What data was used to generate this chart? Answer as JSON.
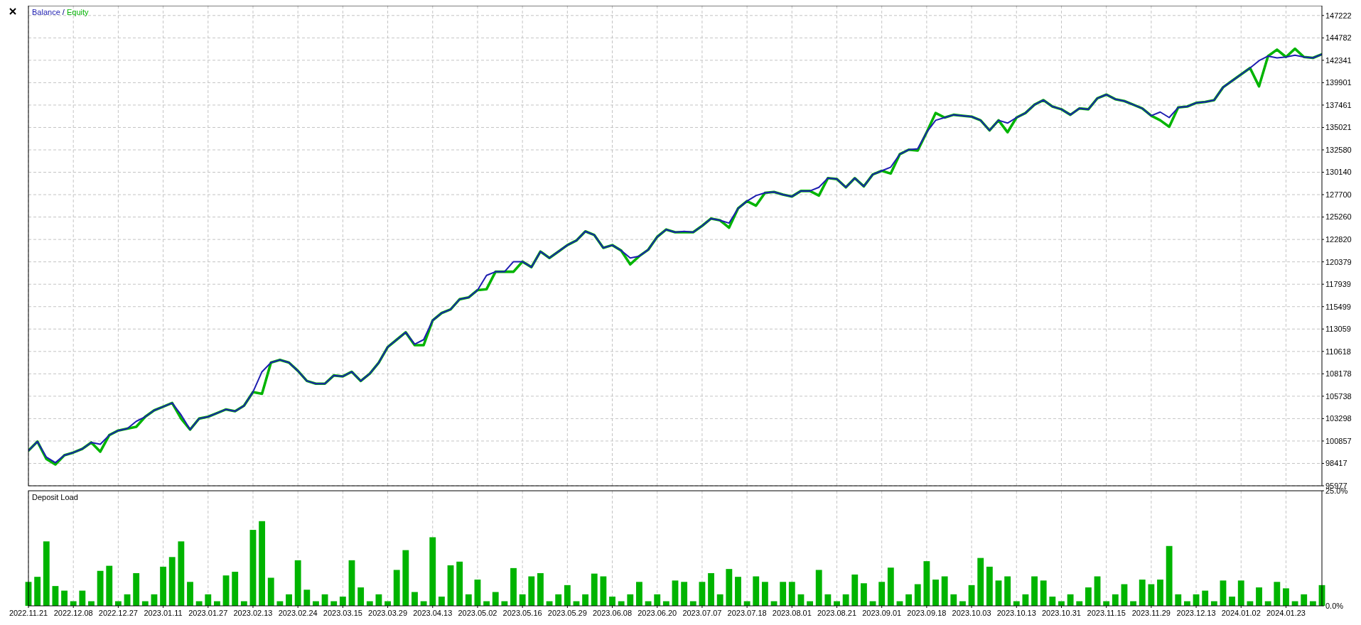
{
  "chart_data": [
    {
      "type": "line",
      "tick_labels": "y",
      "grid": true,
      "legend": "top left",
      "ylim": [
        95977,
        148290
      ],
      "annotations": [
        "/"
      ],
      "categories": [
        "2022.11.21",
        null,
        null,
        null,
        null,
        "2022.12.08",
        null,
        null,
        null,
        null,
        "2022.12.27",
        null,
        null,
        null,
        null,
        "2023.01.11",
        null,
        null,
        null,
        null,
        "2023.01.27",
        null,
        null,
        null,
        null,
        "2023.02.13",
        null,
        null,
        null,
        null,
        "2023.02.24",
        null,
        null,
        null,
        null,
        "2023.03.15",
        null,
        null,
        null,
        null,
        "2023.03.29",
        null,
        null,
        null,
        null,
        "2023.04.13",
        null,
        null,
        null,
        null,
        "2023.05.02",
        null,
        null,
        null,
        null,
        "2023.05.16",
        null,
        null,
        null,
        null,
        "2023.05.29",
        null,
        null,
        null,
        null,
        "2023.06.08",
        null,
        null,
        null,
        null,
        "2023.06.20",
        null,
        null,
        null,
        null,
        "2023.07.07",
        null,
        null,
        null,
        null,
        "2023.07.18",
        null,
        null,
        null,
        null,
        "2023.08.01",
        null,
        null,
        null,
        null,
        "2023.08.21",
        null,
        null,
        null,
        null,
        "2023.09.01",
        null,
        null,
        null,
        null,
        "2023.09.18",
        null,
        null,
        null,
        null,
        "2023.10.03",
        null,
        null,
        null,
        null,
        "2023.10.13",
        null,
        null,
        null,
        null,
        "2023.10.31",
        null,
        null,
        null,
        null,
        "2023.11.15",
        null,
        null,
        null,
        null,
        "2023.11.29",
        null,
        null,
        null,
        null,
        "2023.12.13",
        null,
        null,
        null,
        null,
        "2024.01.02",
        null,
        null,
        null,
        null,
        "2024.01.23",
        null,
        null,
        null,
        null
      ],
      "yticks": [
        95977,
        98417,
        100857,
        103298,
        105738,
        108178,
        110618,
        113059,
        115499,
        117939,
        120379,
        122820,
        125260,
        127700,
        130140,
        132580,
        135021,
        137461,
        139901,
        142341,
        144782,
        147222
      ],
      "series": [
        {
          "name": "Balance",
          "color": "#1c1cb0",
          "values": [
            99800,
            100800,
            99100,
            98500,
            99300,
            99600,
            100000,
            100700,
            100500,
            101500,
            102000,
            102200,
            103000,
            103500,
            104200,
            104600,
            105000,
            103700,
            102100,
            103300,
            103500,
            103900,
            104300,
            104100,
            104700,
            106200,
            108400,
            109400,
            109700,
            109400,
            108500,
            107400,
            107100,
            107100,
            108000,
            107900,
            108400,
            107400,
            108200,
            109400,
            111100,
            111900,
            112700,
            111400,
            111900,
            114000,
            114800,
            115200,
            116300,
            116500,
            117300,
            118900,
            119300,
            119300,
            120400,
            120400,
            119800,
            121500,
            120800,
            121500,
            122200,
            122700,
            123700,
            123300,
            121900,
            122200,
            121600,
            120800,
            121000,
            121700,
            123100,
            123900,
            123600,
            123700,
            123600,
            124300,
            125100,
            124900,
            124600,
            126200,
            127000,
            127600,
            127900,
            128000,
            127700,
            127500,
            128100,
            128100,
            128500,
            129500,
            129400,
            128500,
            129500,
            128600,
            129900,
            130300,
            130700,
            132100,
            132600,
            132700,
            134500,
            135800,
            136100,
            136400,
            136300,
            136200,
            135800,
            134700,
            135800,
            135500,
            136100,
            136600,
            137500,
            138000,
            137300,
            137000,
            136400,
            137100,
            137000,
            138200,
            138600,
            138100,
            137900,
            137500,
            137100,
            136300,
            136700,
            136100,
            137200,
            137300,
            137700,
            137800,
            138000,
            139400,
            140100,
            140800,
            141500,
            142300,
            142800,
            142600,
            142700,
            142900,
            142700,
            142600,
            143000
          ]
        },
        {
          "name": "Equity",
          "color": "#00b400",
          "values": [
            99800,
            100800,
            98900,
            98300,
            99300,
            99600,
            100000,
            100700,
            99700,
            101500,
            102000,
            102200,
            102400,
            103500,
            104200,
            104600,
            105000,
            103300,
            102100,
            103300,
            103500,
            103900,
            104300,
            104100,
            104700,
            106200,
            106000,
            109400,
            109700,
            109400,
            108500,
            107400,
            107100,
            107100,
            108000,
            107900,
            108400,
            107400,
            108200,
            109400,
            111100,
            111900,
            112700,
            111300,
            111300,
            114000,
            114800,
            115200,
            116300,
            116500,
            117300,
            117400,
            119300,
            119300,
            119300,
            120400,
            119800,
            121500,
            120800,
            121500,
            122200,
            122700,
            123700,
            123300,
            121900,
            122200,
            121600,
            120100,
            121000,
            121700,
            123100,
            123900,
            123600,
            123600,
            123600,
            124300,
            125100,
            124900,
            124100,
            126200,
            127000,
            126500,
            127900,
            128000,
            127700,
            127500,
            128100,
            128100,
            127600,
            129500,
            129400,
            128500,
            129500,
            128600,
            129900,
            130300,
            130000,
            132100,
            132600,
            132500,
            134500,
            136600,
            136100,
            136400,
            136300,
            136200,
            135800,
            134700,
            135800,
            134500,
            136100,
            136600,
            137500,
            138000,
            137300,
            137000,
            136400,
            137100,
            137000,
            138200,
            138600,
            138100,
            137900,
            137500,
            137100,
            136300,
            135800,
            135100,
            137200,
            137300,
            137700,
            137800,
            138000,
            139400,
            140100,
            140800,
            141500,
            139500,
            142800,
            143500,
            142700,
            143600,
            142700,
            142600,
            143000
          ]
        }
      ]
    },
    {
      "type": "bar",
      "title": "Deposit Load",
      "ylim": [
        0,
        25
      ],
      "grid": "x",
      "categories": [
        "2022.11.21",
        null,
        null,
        null,
        null,
        "2022.12.08",
        null,
        null,
        null,
        null,
        "2022.12.27",
        null,
        null,
        null,
        null,
        "2023.01.11",
        null,
        null,
        null,
        null,
        "2023.01.27",
        null,
        null,
        null,
        null,
        "2023.02.13",
        null,
        null,
        null,
        null,
        "2023.02.24",
        null,
        null,
        null,
        null,
        "2023.03.15",
        null,
        null,
        null,
        null,
        "2023.03.29",
        null,
        null,
        null,
        null,
        "2023.04.13",
        null,
        null,
        null,
        null,
        "2023.05.02",
        null,
        null,
        null,
        null,
        "2023.05.16",
        null,
        null,
        null,
        null,
        "2023.05.29",
        null,
        null,
        null,
        null,
        "2023.06.08",
        null,
        null,
        null,
        null,
        "2023.06.20",
        null,
        null,
        null,
        null,
        "2023.07.07",
        null,
        null,
        null,
        null,
        "2023.07.18",
        null,
        null,
        null,
        null,
        "2023.08.01",
        null,
        null,
        null,
        null,
        "2023.08.21",
        null,
        null,
        null,
        null,
        "2023.09.01",
        null,
        null,
        null,
        null,
        "2023.09.18",
        null,
        null,
        null,
        null,
        "2023.10.03",
        null,
        null,
        null,
        null,
        "2023.10.13",
        null,
        null,
        null,
        null,
        "2023.10.31",
        null,
        null,
        null,
        null,
        "2023.11.15",
        null,
        null,
        null,
        null,
        "2023.11.29",
        null,
        null,
        null,
        null,
        "2023.12.13",
        null,
        null,
        null,
        null,
        "2024.01.02",
        null,
        null,
        null,
        null,
        "2024.01.23",
        null,
        null,
        null,
        null
      ],
      "yticks": [
        {
          "value": 0,
          "label": "0.0%"
        },
        {
          "value": 25,
          "label": "25.0%"
        }
      ],
      "series": [
        {
          "color": "#00b400",
          "values": [
            5.2,
            6.3,
            14,
            4.3,
            3.3,
            1,
            3.3,
            1,
            7.6,
            8.7,
            1,
            2.5,
            7.1,
            1,
            2.5,
            8.5,
            10.6,
            14,
            5.2,
            1,
            2.5,
            1,
            6.6,
            7.4,
            1,
            16.5,
            18.4,
            6.1,
            1,
            2.5,
            9.9,
            3.5,
            1,
            2.5,
            1,
            2,
            9.9,
            4,
            1,
            2.5,
            1,
            7.8,
            12.1,
            3,
            1,
            14.9,
            2,
            8.8,
            9.6,
            2.5,
            5.7,
            1,
            3,
            1,
            8.2,
            2.5,
            6.4,
            7.1,
            1,
            2.5,
            4.5,
            1,
            2.5,
            7,
            6.4,
            2,
            1,
            2.5,
            5.2,
            1,
            2.5,
            1,
            5.5,
            5.2,
            1,
            5.2,
            7.1,
            2.5,
            8,
            6.3,
            1,
            6.4,
            5.2,
            1,
            5.2,
            5.2,
            2.5,
            1,
            7.8,
            2.5,
            1,
            2.5,
            6.8,
            4.9,
            1,
            5.2,
            8.3,
            1,
            2.5,
            4.7,
            9.7,
            5.7,
            6.4,
            2.5,
            1,
            4.5,
            10.4,
            8.5,
            5.5,
            6.4,
            1,
            2.5,
            6.4,
            5.5,
            2,
            1,
            2.5,
            1,
            4,
            6.4,
            1,
            2.5,
            4.7,
            1,
            5.7,
            4.7,
            5.7,
            13,
            2.5,
            1,
            2.5,
            3.3,
            1,
            5.5,
            2,
            5.5,
            1,
            4,
            1,
            5.2,
            3.8,
            1,
            2.5,
            1,
            4.5
          ]
        }
      ]
    }
  ]
}
